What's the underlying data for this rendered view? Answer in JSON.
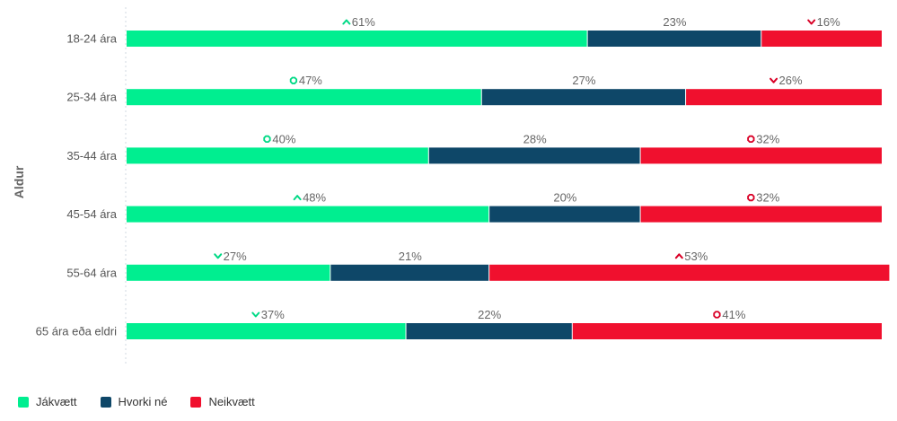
{
  "chart_data": {
    "type": "bar",
    "orientation": "horizontal",
    "stacked": true,
    "percent": true,
    "ylabel": "Aldur",
    "xlim": [
      0,
      100
    ],
    "categories": [
      "18-24 ára",
      "25-34 ára",
      "35-44 ára",
      "45-54 ára",
      "55-64 ára",
      "65 ára eða eldri"
    ],
    "series": [
      {
        "name": "Jákvætt",
        "color": "#00ee90",
        "values": [
          61,
          47,
          40,
          48,
          27,
          37
        ],
        "markers": [
          "up",
          "neutral",
          "neutral",
          "up",
          "down",
          "down"
        ]
      },
      {
        "name": "Hvorki né",
        "color": "#0e4768",
        "values": [
          23,
          27,
          28,
          20,
          21,
          22
        ],
        "markers": [
          "none",
          "none",
          "none",
          "none",
          "none",
          "none"
        ]
      },
      {
        "name": "Neikvætt",
        "color": "#f0102e",
        "values": [
          16,
          26,
          32,
          32,
          53,
          41
        ],
        "markers": [
          "down",
          "down",
          "neutral",
          "neutral",
          "up",
          "neutral"
        ]
      }
    ],
    "labels": [
      [
        "61%",
        "23%",
        "16%"
      ],
      [
        "47%",
        "27%",
        "26%"
      ],
      [
        "40%",
        "28%",
        "32%"
      ],
      [
        "48%",
        "20%",
        "32%"
      ],
      [
        "27%",
        "21%",
        "53%"
      ],
      [
        "37%",
        "22%",
        "41%"
      ]
    ],
    "legend_position": "bottom-left"
  }
}
